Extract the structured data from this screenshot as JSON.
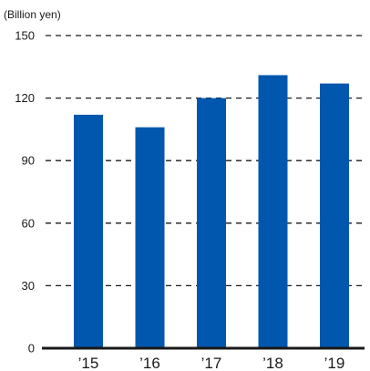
{
  "chart_data": {
    "type": "bar",
    "unit_label": "(Billion yen)",
    "categories": [
      "’15",
      "’16",
      "’17",
      "’18",
      "’19"
    ],
    "values": [
      112,
      106,
      120,
      131,
      127
    ],
    "ylim": [
      0,
      150
    ],
    "yticks": [
      0,
      30,
      60,
      90,
      120,
      150
    ],
    "grid": true,
    "bar_color": "#0057ad",
    "axis_color": "#1a1a1a"
  }
}
